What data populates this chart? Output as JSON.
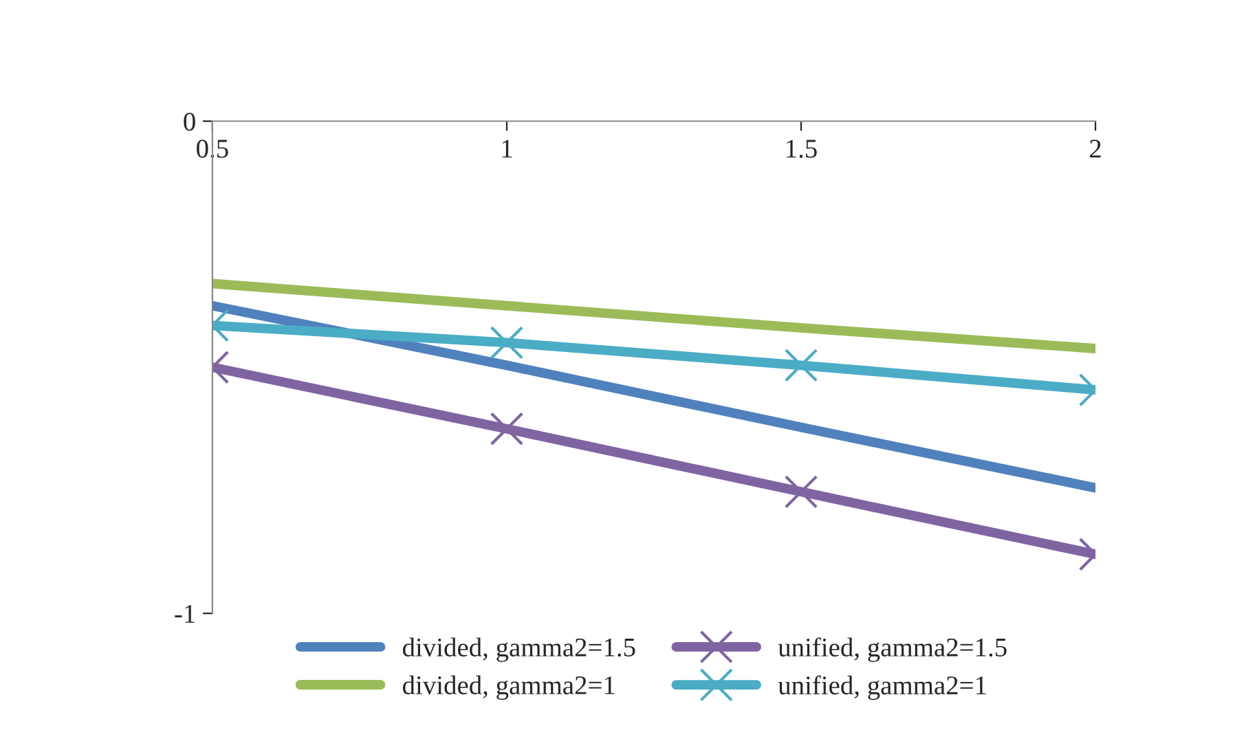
{
  "chart_data": {
    "type": "line",
    "x": [
      0.5,
      1,
      1.5,
      2
    ],
    "xlim": [
      0.5,
      2
    ],
    "xticks": [
      0.5,
      1,
      1.5,
      2
    ],
    "ylim": [
      -1,
      0
    ],
    "yticks": [
      -1,
      0
    ],
    "grid": false,
    "legend": "bottom",
    "line_style": "solid",
    "series": [
      {
        "name": "divided, gamma2=1.5",
        "color": "#4f81bd",
        "values": [
          -0.375,
          -0.496,
          -0.622,
          -0.745
        ],
        "marker": "none"
      },
      {
        "name": "divided, gamma2=1",
        "color": "#9bbb59",
        "values": [
          -0.33,
          -0.375,
          -0.42,
          -0.462
        ],
        "marker": "none"
      },
      {
        "name": "unified, gamma2=1.5",
        "color": "#8064a2",
        "values": [
          -0.5,
          -0.625,
          -0.753,
          -0.88
        ],
        "marker": "cross"
      },
      {
        "name": "unified, gamma2=1",
        "color": "#4bacc6",
        "values": [
          -0.415,
          -0.45,
          -0.496,
          -0.546
        ],
        "marker": "cross"
      }
    ]
  }
}
